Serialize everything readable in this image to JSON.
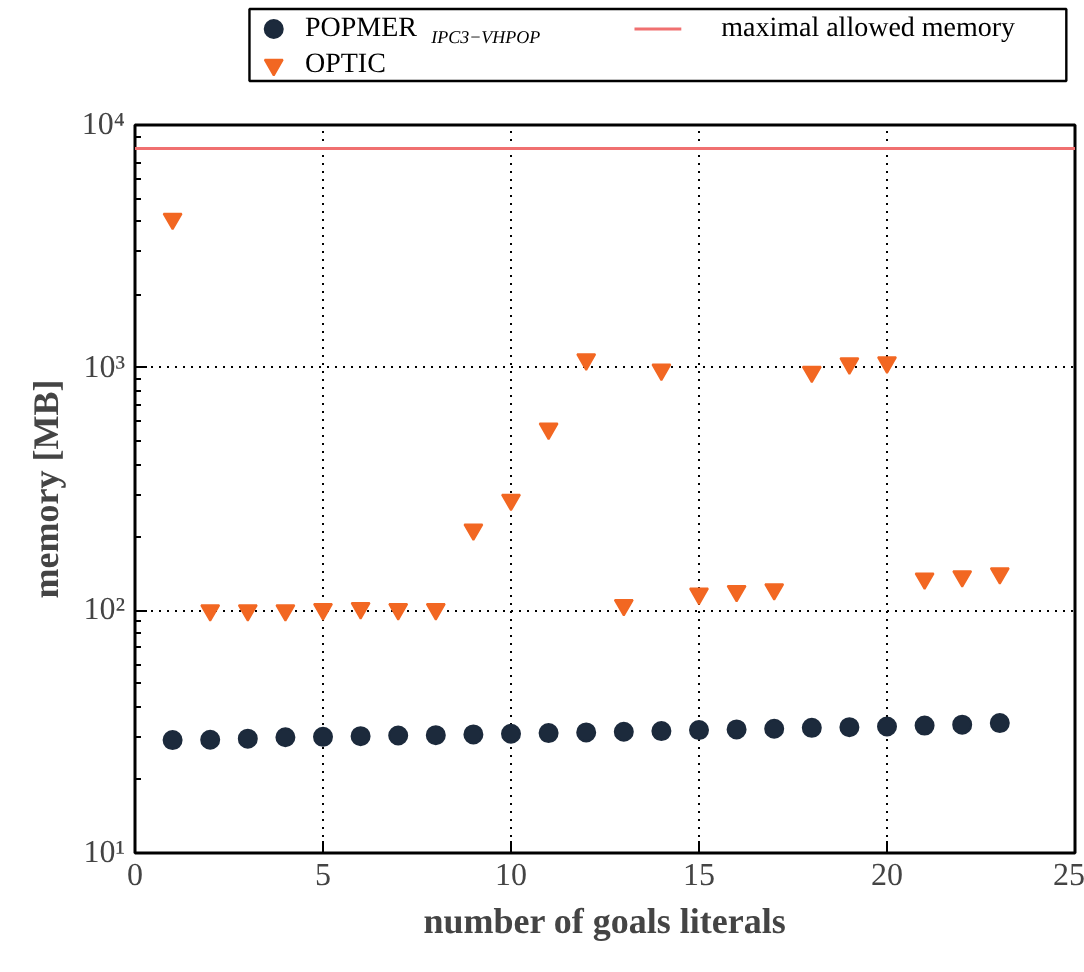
{
  "chart_data": {
    "type": "scatter",
    "xlabel": "number of goals literals",
    "ylabel": "memory [MB]",
    "x": [
      1,
      2,
      3,
      4,
      5,
      6,
      7,
      8,
      9,
      10,
      11,
      12,
      13,
      14,
      15,
      16,
      17,
      18,
      19,
      20,
      21,
      22,
      23
    ],
    "series": [
      {
        "name": "POPMER$_{IPC3−VHPOP}$",
        "color": "#1c2a3c",
        "marker": "circle",
        "values": [
          29.2,
          29.3,
          29.6,
          30,
          30.1,
          30.3,
          30.5,
          30.6,
          30.8,
          31,
          31.2,
          31.4,
          31.6,
          31.8,
          32.1,
          32.3,
          32.5,
          32.8,
          33,
          33.2,
          33.5,
          33.8,
          34.3
        ]
      },
      {
        "name": "OPTIC",
        "color": "#f26722",
        "marker": "triangle",
        "values": [
          4100,
          100,
          100,
          100,
          101,
          102,
          101,
          101,
          215,
          285,
          560,
          1080,
          105,
          980,
          117,
          120,
          122,
          960,
          1040,
          1050,
          135,
          138,
          142
        ]
      }
    ],
    "ref_lines": [
      {
        "axis": "y",
        "value": 8000,
        "label": "maximal allowed memory",
        "color": "#f07070"
      }
    ],
    "log": "y",
    "xlim": [
      0,
      25
    ],
    "ylim": [
      10,
      10000
    ],
    "xticks": [
      0,
      5,
      10,
      15,
      20,
      25
    ],
    "yticks": [
      {
        "value": 10,
        "label": "10¹"
      },
      {
        "value": 100,
        "label": "10²"
      },
      {
        "value": 1000,
        "label": "10³"
      },
      {
        "value": 10000,
        "label": "10⁴"
      }
    ],
    "grid": true,
    "legend": "top"
  }
}
